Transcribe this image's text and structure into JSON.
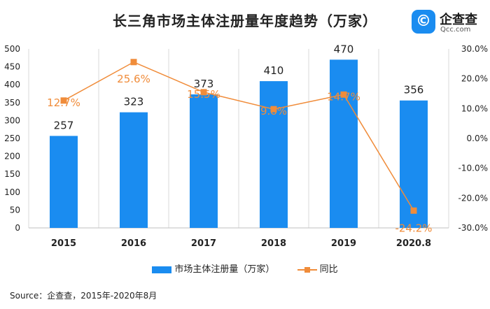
{
  "title": "长三角市场主体注册量年度趋势（万家）",
  "logo": {
    "mark": "©",
    "name": "企查查",
    "domain": "Qcc.com"
  },
  "source": "Source：企查查，2015年-2020年8月",
  "colors": {
    "bar": "#1a8cf0",
    "line": "#f08c3a",
    "label_bar": "#222222",
    "label_line": "#f08c3a"
  },
  "chart_data": {
    "type": "bar",
    "categories": [
      "2015",
      "2016",
      "2017",
      "2018",
      "2019",
      "2020.8"
    ],
    "series": [
      {
        "name": "市场主体注册量（万家）",
        "type": "bar",
        "axis": "left",
        "values": [
          257,
          323,
          373,
          410,
          470,
          356
        ],
        "labels": [
          "257",
          "323",
          "373",
          "410",
          "470",
          "356"
        ]
      },
      {
        "name": "同比",
        "type": "line",
        "axis": "right",
        "values": [
          12.7,
          25.6,
          15.5,
          9.8,
          14.7,
          -24.2
        ],
        "labels": [
          "12.7%",
          "25.6%",
          "15.5%",
          "9.8%",
          "14.7%",
          "-24.2%"
        ]
      }
    ],
    "y_left": {
      "min": 0,
      "max": 500,
      "ticks": [
        "0",
        "50",
        "100",
        "150",
        "200",
        "250",
        "300",
        "350",
        "400",
        "450",
        "500"
      ]
    },
    "y_right": {
      "min": -30,
      "max": 30,
      "ticks": [
        "-30.0%",
        "-20.0%",
        "-10.0%",
        "0.0%",
        "10.0%",
        "20.0%",
        "30.0%"
      ]
    },
    "grid": "vertical",
    "legend_position": "bottom"
  }
}
